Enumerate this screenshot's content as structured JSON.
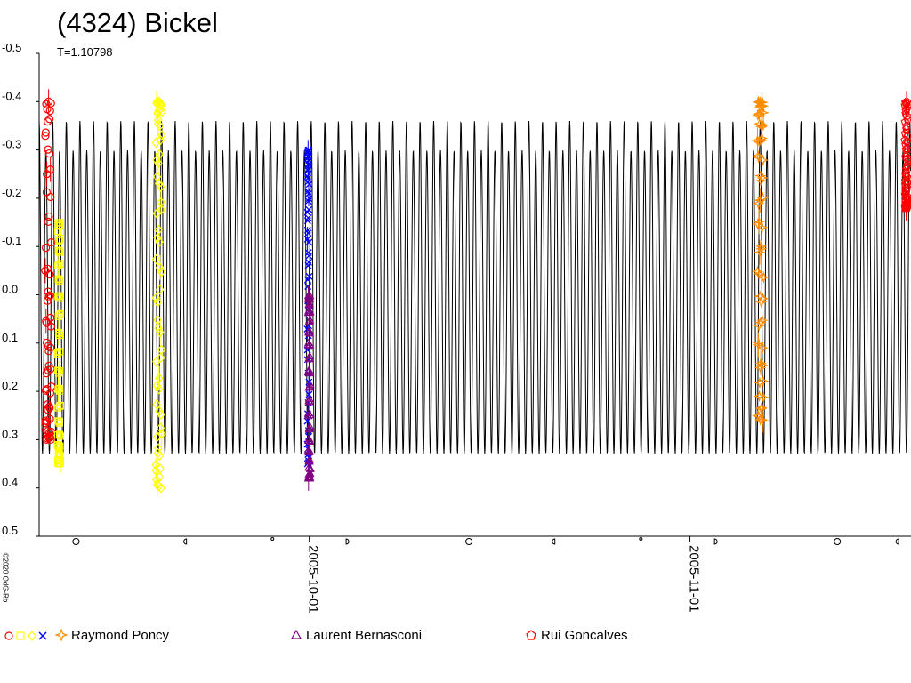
{
  "title": "(4324) Bickel",
  "subtitle": "T=1.10798",
  "copyright": "©2020 OdG-Rb",
  "chart_data": {
    "type": "scatter",
    "title": "(4324) Bickel",
    "period_label": "T=1.10798",
    "ylim": [
      0.5,
      -0.5
    ],
    "yticks": [
      "-0.5",
      "-0.4",
      "-0.3",
      "-0.2",
      "-0.1",
      "0.0",
      "0.1",
      "0.2",
      "0.3",
      "0.4",
      "0.5"
    ],
    "ytick_values": [
      -0.5,
      -0.4,
      -0.3,
      -0.2,
      -0.1,
      0.0,
      0.1,
      0.2,
      0.3,
      0.4,
      0.5
    ],
    "xlim": [
      "2005-09-09",
      "2005-11-19"
    ],
    "xticks": [
      "2005-10-01",
      "2005-11-01"
    ],
    "moon_phase_dates": [
      "2005-09-12",
      "2005-09-21",
      "2005-09-28",
      "2005-10-04",
      "2005-10-14",
      "2005-10-21",
      "2005-10-28",
      "2005-11-03",
      "2005-11-13",
      "2005-11-18"
    ],
    "model_curve": {
      "period_hours": 26.59,
      "color": "#000000",
      "max_range": [
        -0.36,
        0.36
      ],
      "min_range": [
        -0.32,
        0.31
      ]
    },
    "series": [
      {
        "name": "",
        "color": "#ff0000",
        "marker": "circle",
        "x": [
          "2005-09-09T12:00",
          "2005-09-09T16:00",
          "2005-09-09T20:00",
          "2005-09-10T00:00"
        ],
        "y": [
          0.3,
          -0.4,
          0.25,
          -0.3
        ]
      },
      {
        "name": "",
        "color": "#ffff00",
        "marker": "square",
        "x": [
          "2005-09-10T12:00",
          "2005-09-10T18:00"
        ],
        "y": [
          0.35,
          -0.15
        ]
      },
      {
        "name": "",
        "color": "#ffff00",
        "marker": "diamond",
        "x": [
          "2005-09-18T12:00",
          "2005-09-18T18:00",
          "2005-09-19T00:00"
        ],
        "y": [
          -0.4,
          0.4,
          0.3
        ]
      },
      {
        "name": "",
        "color": "#0000ff",
        "marker": "cross",
        "x": [
          "2005-09-30T20:00",
          "2005-10-01T00:00"
        ],
        "y": [
          0.35,
          -0.3
        ]
      },
      {
        "name": "Raymond Poncy",
        "color": "#ff8c00",
        "marker": "star",
        "x": [
          "2005-11-06T12:00",
          "2005-11-06T18:00",
          "2005-11-07T00:00"
        ],
        "y": [
          -0.4,
          0.26,
          -0.1
        ]
      },
      {
        "name": "Laurent Bernasconi",
        "color": "#800080",
        "marker": "triangle",
        "x": [
          "2005-09-30T22:00",
          "2005-10-01T02:00"
        ],
        "y": [
          0.38,
          0.0
        ]
      },
      {
        "name": "Rui Goncalves",
        "color": "#ff0000",
        "marker": "pentagon",
        "x": [
          "2005-11-18T12:00",
          "2005-11-18T18:00"
        ],
        "y": [
          -0.4,
          -0.18
        ]
      }
    ]
  },
  "legend": {
    "icon_colors": [
      "#ff0000",
      "#ffff00",
      "#ffff00",
      "#0000ff"
    ],
    "items": [
      {
        "label": "Raymond Poncy",
        "color": "#ff8c00",
        "icon": "star-icon"
      },
      {
        "label": "Laurent Bernasconi",
        "color": "#800080",
        "icon": "triangle-icon"
      },
      {
        "label": "Rui Goncalves",
        "color": "#ff0000",
        "icon": "pentagon-icon"
      }
    ]
  }
}
